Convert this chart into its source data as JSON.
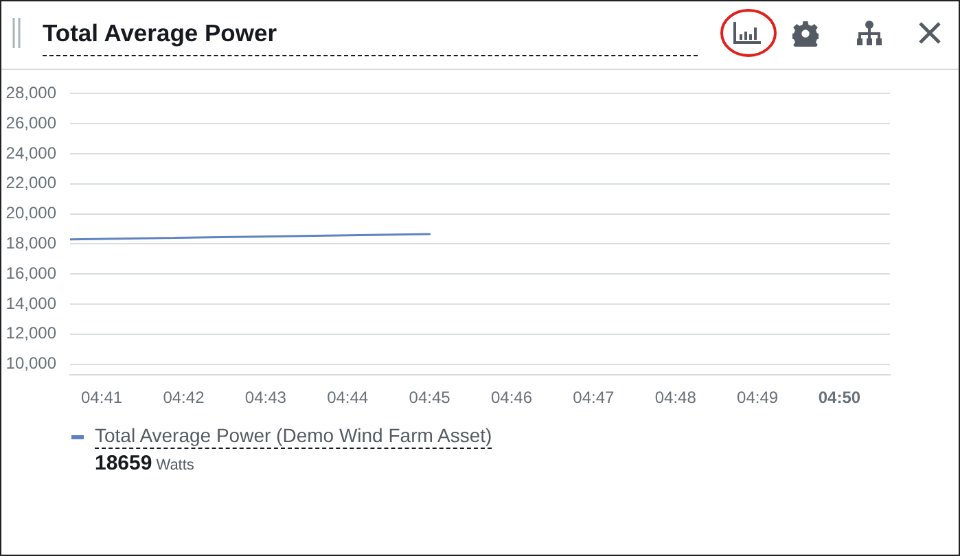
{
  "chart_data": {
    "type": "line",
    "title": "Total Average Power",
    "x": [
      4.6769,
      4.75
    ],
    "xlim": [
      4.6769,
      4.8436
    ],
    "xticks": [
      {
        "value": 4.68333,
        "label": "04:41"
      },
      {
        "value": 4.7,
        "label": "04:42"
      },
      {
        "value": 4.71667,
        "label": "04:43"
      },
      {
        "value": 4.73333,
        "label": "04:44"
      },
      {
        "value": 4.75,
        "label": "04:45"
      },
      {
        "value": 4.76667,
        "label": "04:46"
      },
      {
        "value": 4.78333,
        "label": "04:47"
      },
      {
        "value": 4.8,
        "label": "04:48"
      },
      {
        "value": 4.81667,
        "label": "04:49"
      },
      {
        "value": 4.83333,
        "label": "04:50"
      }
    ],
    "ylim": [
      9300,
      28000
    ],
    "yticks": [
      {
        "value": 10000,
        "label": "10,000"
      },
      {
        "value": 12000,
        "label": "12,000"
      },
      {
        "value": 14000,
        "label": "14,000"
      },
      {
        "value": 16000,
        "label": "16,000"
      },
      {
        "value": 18000,
        "label": "18,000"
      },
      {
        "value": 20000,
        "label": "20,000"
      },
      {
        "value": 22000,
        "label": "22,000"
      },
      {
        "value": 24000,
        "label": "24,000"
      },
      {
        "value": 26000,
        "label": "26,000"
      },
      {
        "value": 28000,
        "label": "28,000"
      }
    ],
    "series": [
      {
        "name": "Total Average Power (Demo Wind Farm Asset)",
        "color": "#5f82c0",
        "values": [
          18300,
          18659
        ]
      }
    ],
    "annotations": [
      "18659",
      "Watts"
    ],
    "grid": "y",
    "legend": "bottom"
  }
}
